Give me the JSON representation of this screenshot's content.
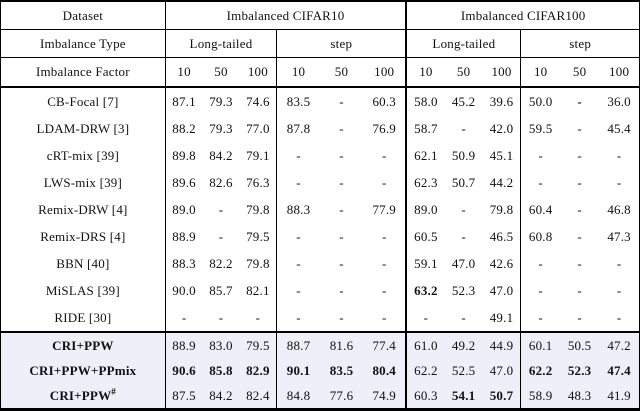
{
  "table": {
    "corner_labels": {
      "dataset": "Dataset",
      "imbalance_type": "Imbalance Type",
      "imbalance_factor": "Imbalance Factor"
    },
    "datasets": [
      {
        "label": "Imbalanced CIFAR10"
      },
      {
        "label": "Imbalanced CIFAR100"
      }
    ],
    "types": [
      {
        "label": "Long-tailed"
      },
      {
        "label": "step"
      },
      {
        "label": "Long-tailed"
      },
      {
        "label": "step"
      }
    ],
    "factors": [
      "10",
      "50",
      "100",
      "10",
      "50",
      "100",
      "10",
      "50",
      "100",
      "10",
      "50",
      "100"
    ],
    "highlight_color": "#edf0f8",
    "rows": [
      {
        "method": "CB-Focal [7]",
        "method_bold": false,
        "highlight": false,
        "values": [
          "87.1",
          "79.3",
          "74.6",
          "83.5",
          "-",
          "60.3",
          "58.0",
          "45.2",
          "39.6",
          "50.0",
          "-",
          "36.0"
        ],
        "bold": [
          10
        ]
      },
      {
        "method": "LDAM-DRW [3]",
        "method_bold": false,
        "highlight": false,
        "values": [
          "88.2",
          "79.3",
          "77.0",
          "87.8",
          "-",
          "76.9",
          "58.7",
          "-",
          "42.0",
          "59.5",
          "-",
          "45.4"
        ],
        "bold": []
      },
      {
        "method": "cRT-mix [39]",
        "method_bold": false,
        "highlight": false,
        "values": [
          "89.8",
          "84.2",
          "79.1",
          "-",
          "-",
          "-",
          "62.1",
          "50.9",
          "45.1",
          "-",
          "-",
          "-"
        ],
        "bold": []
      },
      {
        "method": "LWS-mix [39]",
        "method_bold": false,
        "highlight": false,
        "values": [
          "89.6",
          "82.6",
          "76.3",
          "-",
          "-",
          "-",
          "62.3",
          "50.7",
          "44.2",
          "-",
          "-",
          "-"
        ],
        "bold": []
      },
      {
        "method": "Remix-DRW [4]",
        "method_bold": false,
        "highlight": false,
        "values": [
          "89.0",
          "-",
          "79.8",
          "88.3",
          "-",
          "77.9",
          "89.0",
          "-",
          "79.8",
          "60.4",
          "-",
          "46.8"
        ],
        "bold": []
      },
      {
        "method": "Remix-DRS [4]",
        "method_bold": false,
        "highlight": false,
        "values": [
          "88.9",
          "-",
          "79.5",
          "-",
          "-",
          "-",
          "60.5",
          "-",
          "46.5",
          "60.8",
          "-",
          "47.3"
        ],
        "bold": []
      },
      {
        "method": "BBN [40]",
        "method_bold": false,
        "highlight": false,
        "values": [
          "88.3",
          "82.2",
          "79.8",
          "-",
          "-",
          "-",
          "59.1",
          "47.0",
          "42.6",
          "-",
          "-",
          "-"
        ],
        "bold": []
      },
      {
        "method": "MiSLAS [39]",
        "method_bold": false,
        "highlight": false,
        "values": [
          "90.0",
          "85.7",
          "82.1",
          "-",
          "-",
          "-",
          "63.2",
          "52.3",
          "47.0",
          "-",
          "-",
          "-"
        ],
        "bold": [
          6
        ]
      },
      {
        "method": "RIDE [30]",
        "method_bold": false,
        "highlight": false,
        "values": [
          "-",
          "-",
          "-",
          "-",
          "-",
          "-",
          "-",
          "-",
          "49.1",
          "-",
          "-",
          "-"
        ],
        "bold": []
      },
      {
        "method": "CRI+PPW",
        "method_bold": true,
        "highlight": true,
        "values": [
          "88.9",
          "83.0",
          "79.5",
          "88.7",
          "81.6",
          "77.4",
          "61.0",
          "49.2",
          "44.9",
          "60.1",
          "50.5",
          "47.2"
        ],
        "bold": []
      },
      {
        "method": "CRI+PPW+PPmix",
        "method_bold": true,
        "highlight": true,
        "values": [
          "90.6",
          "85.8",
          "82.9",
          "90.1",
          "83.5",
          "80.4",
          "62.2",
          "52.5",
          "47.0",
          "62.2",
          "52.3",
          "47.4"
        ],
        "bold": [
          0,
          1,
          2,
          3,
          4,
          5,
          9,
          10,
          11
        ]
      },
      {
        "method": "CRI+PPW",
        "method_sup": "#",
        "method_bold": true,
        "highlight": true,
        "values": [
          "87.5",
          "84.2",
          "82.4",
          "84.8",
          "77.6",
          "74.9",
          "60.3",
          "54.1",
          "50.7",
          "58.9",
          "48.3",
          "41.9"
        ],
        "bold": [
          7,
          8
        ]
      }
    ]
  }
}
